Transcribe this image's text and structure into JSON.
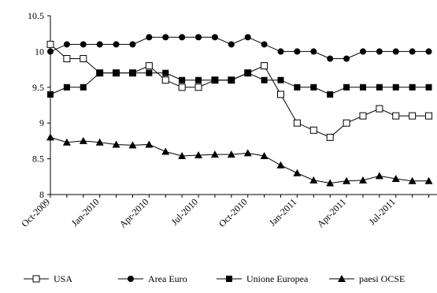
{
  "chart_data": {
    "type": "line",
    "title": "",
    "xlabel": "",
    "ylabel": "",
    "ylim": [
      8,
      10.5
    ],
    "y_ticks": [
      "8",
      "8.5",
      "9",
      "9.5",
      "10",
      "10.5"
    ],
    "y_tick_values": [
      8,
      8.5,
      9,
      9.5,
      10,
      10.5
    ],
    "x": [
      "Oct-2009",
      "Nov-2009",
      "Dec-2009",
      "Jan-2010",
      "Feb-2010",
      "Mar-2010",
      "Apr-2010",
      "May-2010",
      "Jun-2010",
      "Jul-2010",
      "Aug-2010",
      "Sep-2010",
      "Oct-2010",
      "Nov-2010",
      "Dec-2010",
      "Jan-2011",
      "Feb-2011",
      "Mar-2011",
      "Apr-2011",
      "May-2011",
      "Jun-2011",
      "Jul-2011",
      "Aug-2011",
      "Sep-2011"
    ],
    "x_tick_labels": [
      "Oct-2009",
      "Jan-2010",
      "Apr-2010",
      "Jul-2010",
      "Oct-2010",
      "Jan-2011",
      "Apr-2011",
      "Jul-2011"
    ],
    "x_tick_index": [
      0,
      3,
      6,
      9,
      12,
      15,
      18,
      21
    ],
    "grid": false,
    "legend_position": "bottom",
    "series": [
      {
        "name": "USA",
        "marker": "open-square",
        "values": [
          10.1,
          9.9,
          9.9,
          9.7,
          9.7,
          9.7,
          9.8,
          9.6,
          9.5,
          9.5,
          9.6,
          9.6,
          9.7,
          9.8,
          9.4,
          9.0,
          8.9,
          8.8,
          9.0,
          9.1,
          9.2,
          9.1,
          9.1,
          9.1
        ]
      },
      {
        "name": "Area Euro",
        "marker": "filled-circle",
        "values": [
          10.0,
          10.1,
          10.1,
          10.1,
          10.1,
          10.1,
          10.2,
          10.2,
          10.2,
          10.2,
          10.2,
          10.1,
          10.2,
          10.1,
          10.0,
          10.0,
          10.0,
          9.9,
          9.9,
          10.0,
          10.0,
          10.0,
          10.0,
          10.0
        ]
      },
      {
        "name": "Unione Europea",
        "marker": "filled-square",
        "values": [
          9.4,
          9.5,
          9.5,
          9.7,
          9.7,
          9.7,
          9.7,
          9.7,
          9.6,
          9.6,
          9.6,
          9.6,
          9.7,
          9.6,
          9.6,
          9.5,
          9.5,
          9.4,
          9.5,
          9.5,
          9.5,
          9.5,
          9.5,
          9.5
        ]
      },
      {
        "name": "paesi OCSE",
        "marker": "filled-triangle",
        "values": [
          8.8,
          8.73,
          8.75,
          8.73,
          8.7,
          8.69,
          8.7,
          8.6,
          8.54,
          8.55,
          8.56,
          8.56,
          8.58,
          8.54,
          8.41,
          8.3,
          8.2,
          8.16,
          8.19,
          8.2,
          8.26,
          8.22,
          8.19,
          8.19
        ]
      }
    ]
  }
}
